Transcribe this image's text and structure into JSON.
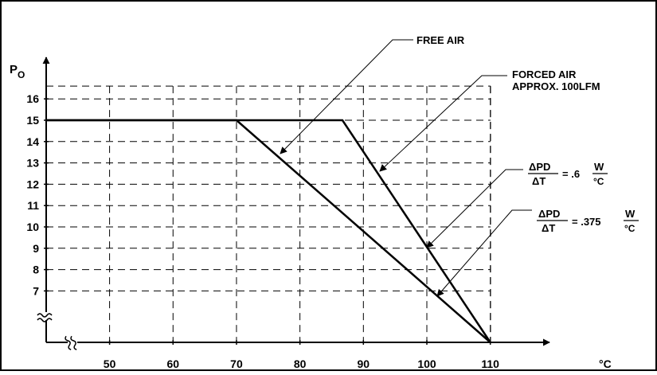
{
  "chart_data": {
    "type": "line",
    "title": "",
    "xlabel": "°C",
    "ylabel": "P",
    "ylabel_sub": "O",
    "x_ticks": [
      50,
      60,
      70,
      80,
      90,
      100,
      110
    ],
    "y_ticks": [
      7,
      8,
      9,
      10,
      11,
      12,
      13,
      14,
      15,
      16
    ],
    "xlim": [
      41,
      115
    ],
    "ylim": [
      5.8,
      17
    ],
    "axis_break": true,
    "grid": true,
    "series": [
      {
        "name": "FREE AIR",
        "x": [
          41,
          70,
          110
        ],
        "y": [
          15,
          15,
          0
        ]
      },
      {
        "name": "FORCED AIR APPROX. 100LFM",
        "x": [
          41,
          86.7,
          110
        ],
        "y": [
          15,
          15,
          0
        ]
      }
    ],
    "annotations": [
      {
        "id": "free-air",
        "lines": [
          "FREE AIR"
        ]
      },
      {
        "id": "forced-air",
        "lines": [
          "FORCED AIR",
          "APPROX. 100LFM"
        ]
      },
      {
        "id": "slope-06",
        "numerator": "ΔPD",
        "denominator": "ΔT",
        "value": "= .6",
        "unit_num": "W",
        "unit_den": "°C"
      },
      {
        "id": "slope-0375",
        "numerator": "ΔPD",
        "denominator": "ΔT",
        "value": "= .375",
        "unit_num": "W",
        "unit_den": "°C"
      }
    ],
    "colors": {
      "line": "#000000",
      "grid": "#000000",
      "background": "#ffffff"
    }
  }
}
